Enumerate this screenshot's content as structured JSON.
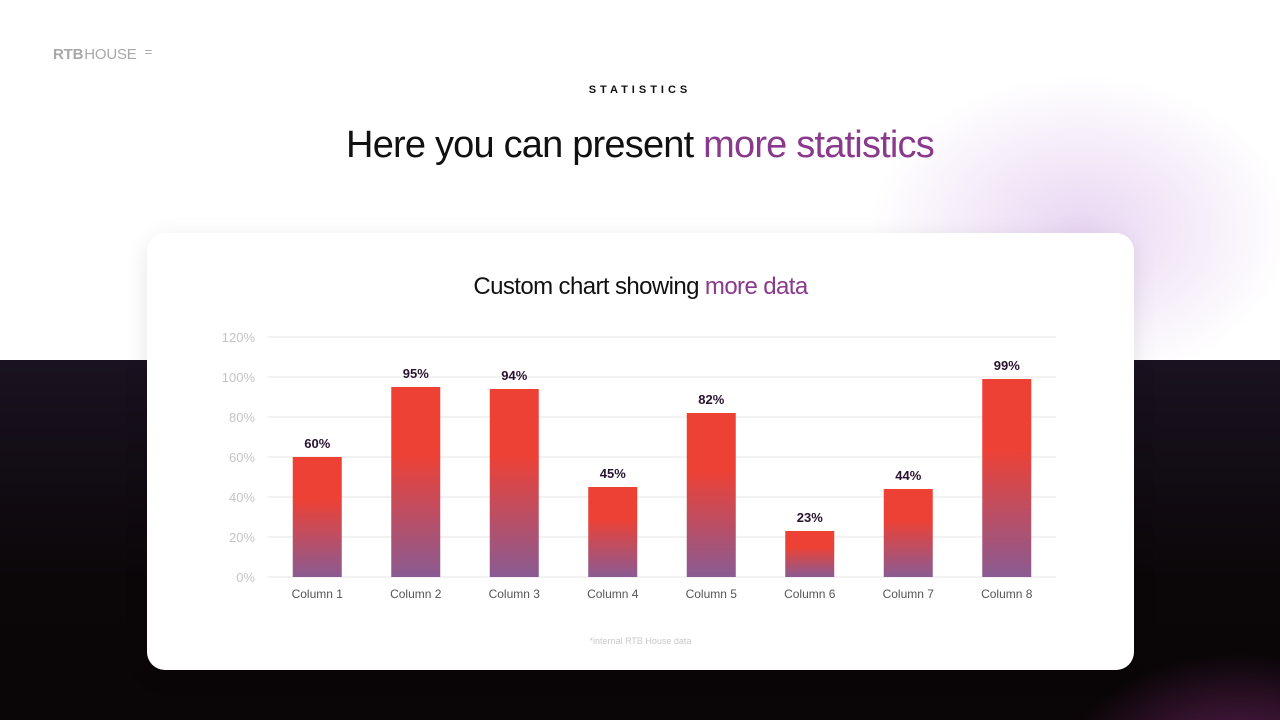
{
  "brand": {
    "part1": "RTB",
    "part2": "HOUSE",
    "menu_icon": "menu-icon"
  },
  "header": {
    "eyebrow": "STATISTICS",
    "title_main": "Here you can present ",
    "title_accent": "more statistics"
  },
  "card": {
    "title_main": "Custom chart showing ",
    "title_accent": "more data",
    "footnote": "*internal RTB House data"
  },
  "colors": {
    "accent": "#8a3a8c",
    "bar_top": "#ee4135",
    "bar_bottom": "#8a5b92",
    "label": "#2a1330"
  },
  "chart_data": {
    "type": "bar",
    "categories": [
      "Column 1",
      "Column 2",
      "Column 3",
      "Column 4",
      "Column 5",
      "Column 6",
      "Column 7",
      "Column 8"
    ],
    "values": [
      60,
      95,
      94,
      45,
      82,
      23,
      44,
      99
    ],
    "data_labels": [
      "60%",
      "95%",
      "94%",
      "45%",
      "82%",
      "23%",
      "44%",
      "99%"
    ],
    "yticks": [
      "0%",
      "20%",
      "40%",
      "60%",
      "80%",
      "100%",
      "120%"
    ],
    "ylim": [
      0,
      120
    ],
    "grid": true,
    "legend": "none"
  }
}
